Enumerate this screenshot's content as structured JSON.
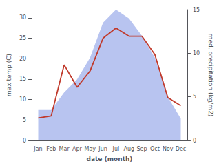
{
  "chart_data": {
    "type": "line",
    "categories": [
      "Jan",
      "Feb",
      "Mar",
      "Apr",
      "May",
      "Jun",
      "Jul",
      "Aug",
      "Sep",
      "Oct",
      "Nov",
      "Dec"
    ],
    "xlabel": "date (month)",
    "ylabel": "max temp (C)",
    "y2label": "med. precipitation (kg/m2)",
    "series": [
      {
        "type": "area",
        "axis": "y2",
        "color": "#b8c4f0",
        "values": [
          3.5,
          3.5,
          5.5,
          7.0,
          9.5,
          13.5,
          15.0,
          14.0,
          12.0,
          9.5,
          5.0,
          2.5
        ]
      },
      {
        "type": "line",
        "color": "#c0392b",
        "values": [
          5.5,
          6.0,
          18.5,
          13.0,
          17.0,
          25.0,
          27.5,
          25.5,
          25.5,
          21.0,
          10.5,
          8.5
        ]
      }
    ],
    "ylim": [
      0,
      32
    ],
    "yticks": [
      0,
      5,
      10,
      15,
      20,
      25,
      30
    ],
    "y2lim": [
      0,
      15
    ],
    "y2ticks": [
      0,
      5,
      10,
      15
    ],
    "grid": false
  }
}
